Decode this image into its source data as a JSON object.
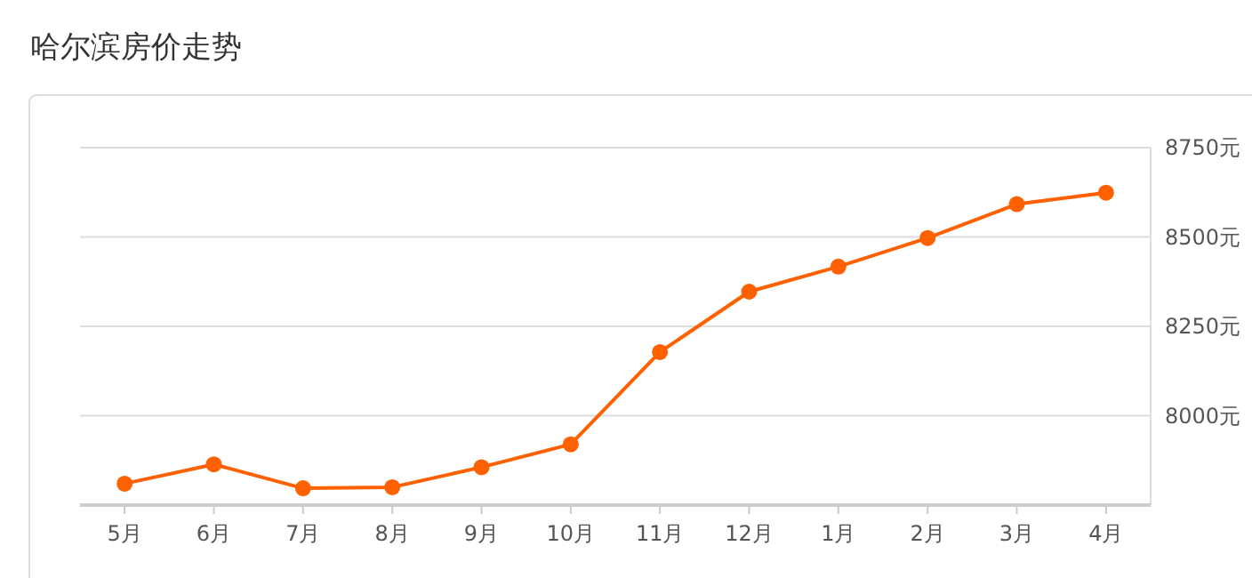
{
  "chart_data": {
    "type": "line",
    "title": "哈尔滨房价走势",
    "categories": [
      "5月",
      "6月",
      "7月",
      "8月",
      "9月",
      "10月",
      "11月",
      "12月",
      "1月",
      "2月",
      "3月",
      "4月"
    ],
    "series": [
      {
        "color": "#ff6000",
        "values": [
          7810,
          7864,
          7797,
          7800,
          7856,
          7920,
          8178,
          8347,
          8417,
          8497,
          8592,
          8624
        ]
      }
    ],
    "ylim": [
      7750,
      8750
    ],
    "yticks": [
      {
        "value": 8000,
        "label": "8000元"
      },
      {
        "value": 8250,
        "label": "8250元"
      },
      {
        "value": 8500,
        "label": "8500元"
      },
      {
        "value": 8750,
        "label": "8750元"
      }
    ],
    "grid": "y",
    "marker": "circle"
  }
}
